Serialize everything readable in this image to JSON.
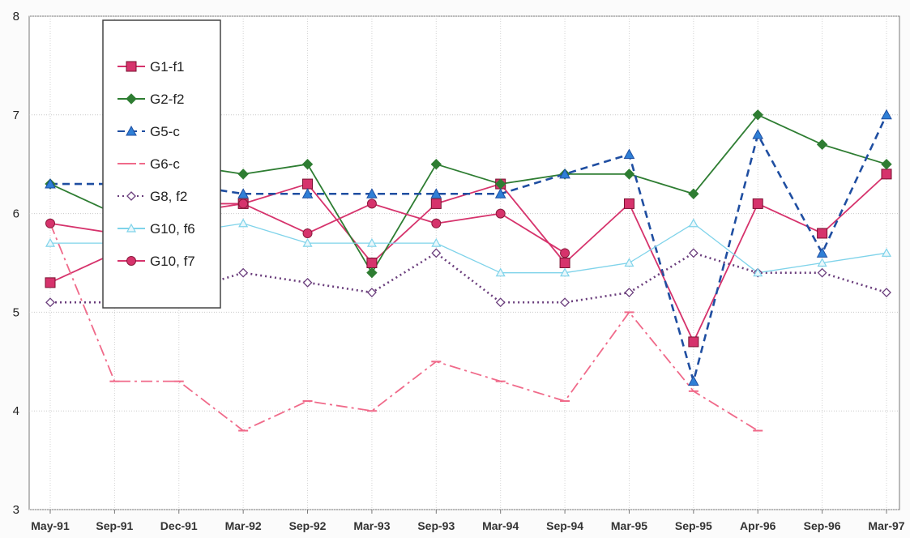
{
  "chart_data": {
    "type": "line",
    "title": "",
    "xlabel": "",
    "ylabel": "",
    "categories": [
      "May-91",
      "Sep-91",
      "Dec-91",
      "Mar-92",
      "Sep-92",
      "Mar-93",
      "Sep-93",
      "Mar-94",
      "Sep-94",
      "Mar-95",
      "Sep-95",
      "Apr-96",
      "Sep-96",
      "Mar-97"
    ],
    "ylim": [
      3,
      8
    ],
    "yticks": [
      "3",
      "4",
      "5",
      "6",
      "7",
      "8"
    ],
    "grid": "on",
    "legend_position": "top-left",
    "series": [
      {
        "name": "G1-f1",
        "color": "#d6336c",
        "marker": "square",
        "line": "solid",
        "values": [
          5.3,
          5.6,
          6.1,
          6.1,
          6.3,
          5.5,
          6.1,
          6.3,
          5.5,
          6.1,
          4.7,
          6.1,
          5.8,
          6.4
        ]
      },
      {
        "name": "G2-f2",
        "color": "#2e7d32",
        "marker": "diamond",
        "line": "solid",
        "values": [
          6.3,
          6.0,
          6.5,
          6.4,
          6.5,
          5.4,
          6.5,
          6.3,
          6.4,
          6.4,
          6.2,
          7.0,
          6.7,
          6.5
        ]
      },
      {
        "name": "G5-c",
        "color": "#1f4ea1",
        "marker": "triangle",
        "line": "dashed",
        "values": [
          6.3,
          6.3,
          6.3,
          6.2,
          6.2,
          6.2,
          6.2,
          6.2,
          6.4,
          6.6,
          4.3,
          6.8,
          5.6,
          7.0
        ]
      },
      {
        "name": "G6-c",
        "color": "#f06a8a",
        "marker": "dash",
        "line": "dashdot",
        "values": [
          5.9,
          4.3,
          4.3,
          3.8,
          4.1,
          4.0,
          4.5,
          4.3,
          4.1,
          5.0,
          4.2,
          3.8,
          null,
          null
        ]
      },
      {
        "name": "G8, f2",
        "color": "#6a3d7c",
        "marker": "open-diamond",
        "line": "dotted",
        "values": [
          5.1,
          5.1,
          5.2,
          5.4,
          5.3,
          5.2,
          5.6,
          5.1,
          5.1,
          5.2,
          5.6,
          5.4,
          5.4,
          5.2
        ]
      },
      {
        "name": "G10, f6",
        "color": "#7fd3ea",
        "marker": "open-triangle",
        "line": "solid",
        "values": [
          5.7,
          5.7,
          5.8,
          5.9,
          5.7,
          5.7,
          5.7,
          5.4,
          5.4,
          5.5,
          5.9,
          5.4,
          5.5,
          5.6
        ]
      },
      {
        "name": "G10, f7",
        "color": "#d6336c",
        "marker": "circle",
        "line": "solid",
        "values": [
          5.9,
          5.8,
          6.0,
          6.1,
          5.8,
          6.1,
          5.9,
          6.0,
          5.6,
          null,
          null,
          null,
          null,
          null
        ]
      }
    ]
  }
}
